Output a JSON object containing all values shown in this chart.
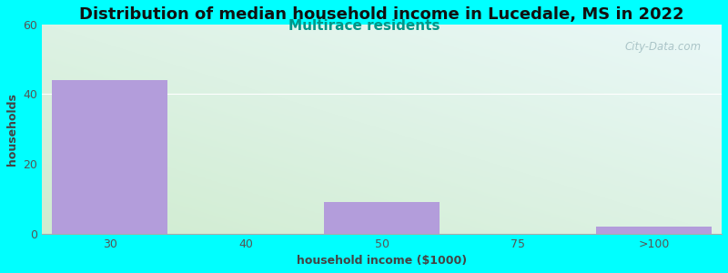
{
  "title": "Distribution of median household income in Lucedale, MS in 2022",
  "subtitle": "Multirace residents",
  "xlabel": "household income ($1000)",
  "ylabel": "households",
  "background_color": "#00FFFF",
  "bar_color": "#b39ddb",
  "bar_edge_color": "#9e8cbf",
  "categories": [
    "30",
    "40",
    "50",
    "75",
    ">100"
  ],
  "values": [
    44,
    0,
    9,
    0,
    2
  ],
  "ylim": [
    0,
    60
  ],
  "yticks": [
    0,
    20,
    40,
    60
  ],
  "title_fontsize": 13,
  "subtitle_fontsize": 11,
  "subtitle_color": "#009688",
  "axis_label_fontsize": 9,
  "tick_label_fontsize": 9,
  "watermark_text": "City-Data.com",
  "watermark_color": "#a0bcc0",
  "bar_width": 0.85,
  "tick_positions": [
    0,
    1,
    2,
    3,
    4
  ],
  "gradient_left_color": "#d8eed8",
  "gradient_right_color": "#e8f8f8"
}
